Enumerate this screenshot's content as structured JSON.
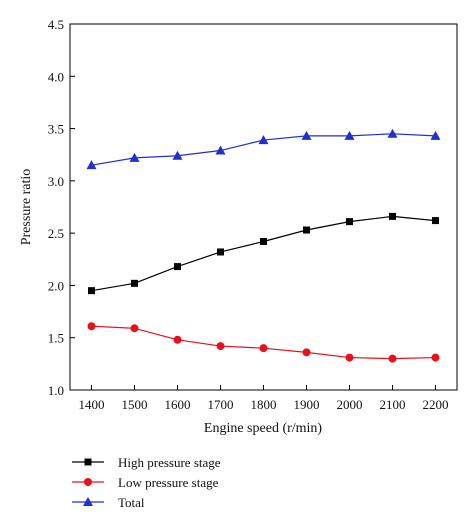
{
  "chart_data": {
    "type": "line",
    "xlabel": "Engine speed (r/min)",
    "ylabel": "Pressure ratio",
    "xlim": [
      1350,
      2250
    ],
    "ylim": [
      1.0,
      4.5
    ],
    "x_ticks": [
      1400,
      1500,
      1600,
      1700,
      1800,
      1900,
      2000,
      2100,
      2200
    ],
    "y_ticks": [
      "1.0",
      "1.5",
      "2.0",
      "2.5",
      "3.0",
      "3.5",
      "4.0",
      "4.5"
    ],
    "grid": false,
    "legend_position": "bottom-left",
    "x": [
      1400,
      1500,
      1600,
      1700,
      1800,
      1900,
      2000,
      2100,
      2200
    ],
    "series": [
      {
        "name": "High pressure stage",
        "color": "#000000",
        "marker": "square",
        "values": [
          1.95,
          2.02,
          2.18,
          2.32,
          2.42,
          2.53,
          2.61,
          2.66,
          2.62
        ]
      },
      {
        "name": "Low pressure stage",
        "color": "#e8101a",
        "marker": "circle",
        "values": [
          1.61,
          1.59,
          1.48,
          1.42,
          1.4,
          1.36,
          1.31,
          1.3,
          1.31
        ]
      },
      {
        "name": "Total",
        "color": "#1f2fd0",
        "marker": "triangle",
        "values": [
          3.15,
          3.22,
          3.24,
          3.29,
          3.39,
          3.43,
          3.43,
          3.45,
          3.43
        ]
      }
    ]
  }
}
